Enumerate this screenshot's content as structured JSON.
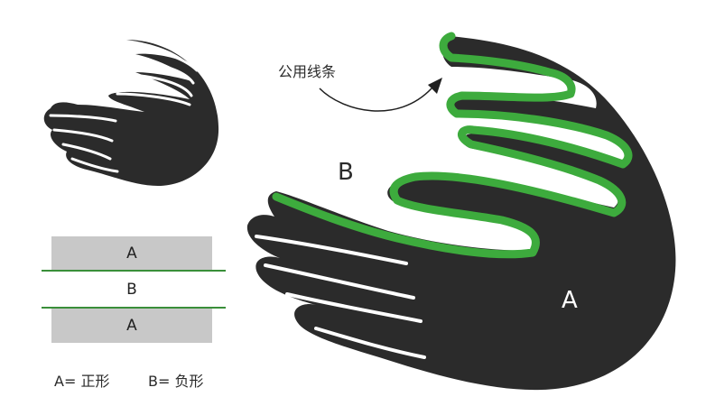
{
  "annotation": {
    "shared_line": "公用线条"
  },
  "labels": {
    "b_space": "B",
    "a_shape": "A"
  },
  "legend": {
    "band_top": "A",
    "band_middle": "B",
    "band_bottom": "A",
    "caption_a": "A= 正形",
    "caption_b": "B= 负形"
  },
  "colors": {
    "shape_fill": "#2b2b2b",
    "highlight_line": "#3dab3d",
    "band_fill": "#c8c8c8",
    "divider_line": "#3a8f3a"
  }
}
